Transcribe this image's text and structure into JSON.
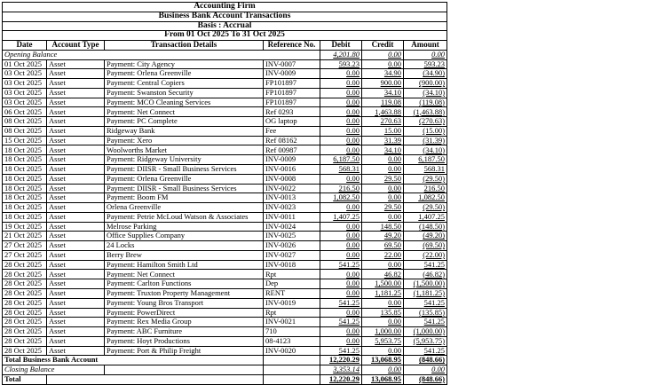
{
  "report": {
    "org_title": "Accounting Firm",
    "report_title": "Business Bank Account Transactions",
    "basis": "Basis : Accrual",
    "period": "From 01 Oct 2025 To 31 Oct 2025",
    "columns": [
      "Date",
      "Account Type",
      "Transaction Details",
      "Reference No.",
      "Debit",
      "Credit",
      "Amount"
    ],
    "opening_balance": {
      "label": "Opening Balance",
      "debit": "4,201.80",
      "credit": "0.00",
      "amount": "0.00"
    },
    "rows": [
      {
        "date": "01 Oct 2025",
        "account_type": "Asset",
        "details": "Payment: City Agency",
        "reference": "INV-0007",
        "debit": "593.23",
        "credit": "0.00",
        "amount": "593.23"
      },
      {
        "date": "03 Oct 2025",
        "account_type": "Asset",
        "details": "Payment: Orlena Greenville",
        "reference": "INV-0009",
        "debit": "0.00",
        "credit": "34.90",
        "amount": "(34.90)"
      },
      {
        "date": "03 Oct 2025",
        "account_type": "Asset",
        "details": "Payment: Central Copiers",
        "reference": "FP101897",
        "debit": "0.00",
        "credit": "900.00",
        "amount": "(900.00)"
      },
      {
        "date": "03 Oct 2025",
        "account_type": "Asset",
        "details": "Payment: Swanston Security",
        "reference": "FP101897",
        "debit": "0.00",
        "credit": "34.10",
        "amount": "(34.10)"
      },
      {
        "date": "03 Oct 2025",
        "account_type": "Asset",
        "details": "Payment: MCO Cleaning Services",
        "reference": "FP101897",
        "debit": "0.00",
        "credit": "119.08",
        "amount": "(119.08)"
      },
      {
        "date": "06 Oct 2025",
        "account_type": "Asset",
        "details": "Payment: Net Connect",
        "reference": "Ref 0293",
        "debit": "0.00",
        "credit": "1,463.88",
        "amount": "(1,463.88)"
      },
      {
        "date": "08 Oct 2025",
        "account_type": "Asset",
        "details": "Payment: PC Complete",
        "reference": "OG laptop",
        "debit": "0.00",
        "credit": "270.63",
        "amount": "(270.63)"
      },
      {
        "date": "08 Oct 2025",
        "account_type": "Asset",
        "details": "Ridgeway Bank",
        "reference": "Fee",
        "debit": "0.00",
        "credit": "15.00",
        "amount": "(15.00)"
      },
      {
        "date": "15 Oct 2025",
        "account_type": "Asset",
        "details": "Payment: Xero",
        "reference": "Ref 08162",
        "debit": "0.00",
        "credit": "31.39",
        "amount": "(31.39)"
      },
      {
        "date": "18 Oct 2025",
        "account_type": "Asset",
        "details": "Woolworths Market",
        "reference": "Ref 00987",
        "debit": "0.00",
        "credit": "34.10",
        "amount": "(34.10)"
      },
      {
        "date": "18 Oct 2025",
        "account_type": "Asset",
        "details": "Payment: Ridgeway University",
        "reference": "INV-0009",
        "debit": "6,187.50",
        "credit": "0.00",
        "amount": "6,187.50"
      },
      {
        "date": "18 Oct 2025",
        "account_type": "Asset",
        "details": "Payment: DIISR - Small Business Services",
        "reference": "INV-0016",
        "debit": "568.31",
        "credit": "0.00",
        "amount": "568.31"
      },
      {
        "date": "18 Oct 2025",
        "account_type": "Asset",
        "details": "Payment: Orlena Greenville",
        "reference": "INV-0008",
        "debit": "0.00",
        "credit": "29.50",
        "amount": "(29.50)"
      },
      {
        "date": "18 Oct 2025",
        "account_type": "Asset",
        "details": "Payment: DIISR - Small Business Services",
        "reference": "INV-0022",
        "debit": "216.50",
        "credit": "0.00",
        "amount": "216.50"
      },
      {
        "date": "18 Oct 2025",
        "account_type": "Asset",
        "details": "Payment: Boom FM",
        "reference": "INV-0013",
        "debit": "1,082.50",
        "credit": "0.00",
        "amount": "1,082.50"
      },
      {
        "date": "18 Oct 2025",
        "account_type": "Asset",
        "details": "Orlena Greenville",
        "reference": "INV-0023",
        "debit": "0.00",
        "credit": "29.50",
        "amount": "(29.50)"
      },
      {
        "date": "18 Oct 2025",
        "account_type": "Asset",
        "details": "Payment: Petrie McLoud Watson & Associates",
        "reference": "INV-0011",
        "debit": "1,407.25",
        "credit": "0.00",
        "amount": "1,407.25"
      },
      {
        "date": "19 Oct 2025",
        "account_type": "Asset",
        "details": "Melrose Parking",
        "reference": "INV-0024",
        "debit": "0.00",
        "credit": "148.50",
        "amount": "(148.50)"
      },
      {
        "date": "21 Oct 2025",
        "account_type": "Asset",
        "details": "Office Supplies Company",
        "reference": "INV-0025",
        "debit": "0.00",
        "credit": "49.20",
        "amount": "(49.20)"
      },
      {
        "date": "27 Oct 2025",
        "account_type": "Asset",
        "details": "24 Locks",
        "reference": "INV-0026",
        "debit": "0.00",
        "credit": "69.50",
        "amount": "(69.50)"
      },
      {
        "date": "27 Oct 2025",
        "account_type": "Asset",
        "details": "Berry Brew",
        "reference": "INV-0027",
        "debit": "0.00",
        "credit": "22.00",
        "amount": "(22.00)"
      },
      {
        "date": "28 Oct 2025",
        "account_type": "Asset",
        "details": "Payment: Hamilton Smith Ltd",
        "reference": "INV-0018",
        "debit": "541.25",
        "credit": "0.00",
        "amount": "541.25"
      },
      {
        "date": "28 Oct 2025",
        "account_type": "Asset",
        "details": "Payment: Net Connect",
        "reference": "Rpt",
        "debit": "0.00",
        "credit": "46.82",
        "amount": "(46.82)"
      },
      {
        "date": "28 Oct 2025",
        "account_type": "Asset",
        "details": "Payment: Carlton Functions",
        "reference": "Dep",
        "debit": "0.00",
        "credit": "1,500.00",
        "amount": "(1,500.00)"
      },
      {
        "date": "28 Oct 2025",
        "account_type": "Asset",
        "details": "Payment: Truxton Property Management",
        "reference": "RENT",
        "debit": "0.00",
        "credit": "1,181.25",
        "amount": "(1,181.25)"
      },
      {
        "date": "28 Oct 2025",
        "account_type": "Asset",
        "details": "Payment: Young Bros Transport",
        "reference": "INV-0019",
        "debit": "541.25",
        "credit": "0.00",
        "amount": "541.25"
      },
      {
        "date": "28 Oct 2025",
        "account_type": "Asset",
        "details": "Payment: PowerDirect",
        "reference": "Rpt",
        "debit": "0.00",
        "credit": "135.85",
        "amount": "(135.85)"
      },
      {
        "date": "28 Oct 2025",
        "account_type": "Asset",
        "details": "Payment: Rex Media Group",
        "reference": "INV-0021",
        "debit": "541.25",
        "credit": "0.00",
        "amount": "541.25"
      },
      {
        "date": "28 Oct 2025",
        "account_type": "Asset",
        "details": "Payment: ABC Furniture",
        "reference": "710",
        "debit": "0.00",
        "credit": "1,000.00",
        "amount": "(1,000.00)"
      },
      {
        "date": "28 Oct 2025",
        "account_type": "Asset",
        "details": "Payment: Hoyt Productions",
        "reference": "08-4123",
        "debit": "0.00",
        "credit": "5,953.75",
        "amount": "(5,953.75)"
      },
      {
        "date": "28 Oct 2025",
        "account_type": "Asset",
        "details": "Payment: Port & Philip Freight",
        "reference": "INV-0020",
        "debit": "541.25",
        "credit": "0.00",
        "amount": "541.25"
      }
    ],
    "total_account": {
      "label": "Total Business Bank Account",
      "debit": "12,220.29",
      "credit": "13,068.95",
      "amount": "(848.66)"
    },
    "closing_balance": {
      "label": "Closing Balance",
      "debit": "3,353.14",
      "credit": "0.00",
      "amount": "0.00"
    },
    "grand_total": {
      "label": "Total",
      "debit": "12,220.29",
      "credit": "13,068.95",
      "amount": "(848.66)"
    }
  }
}
